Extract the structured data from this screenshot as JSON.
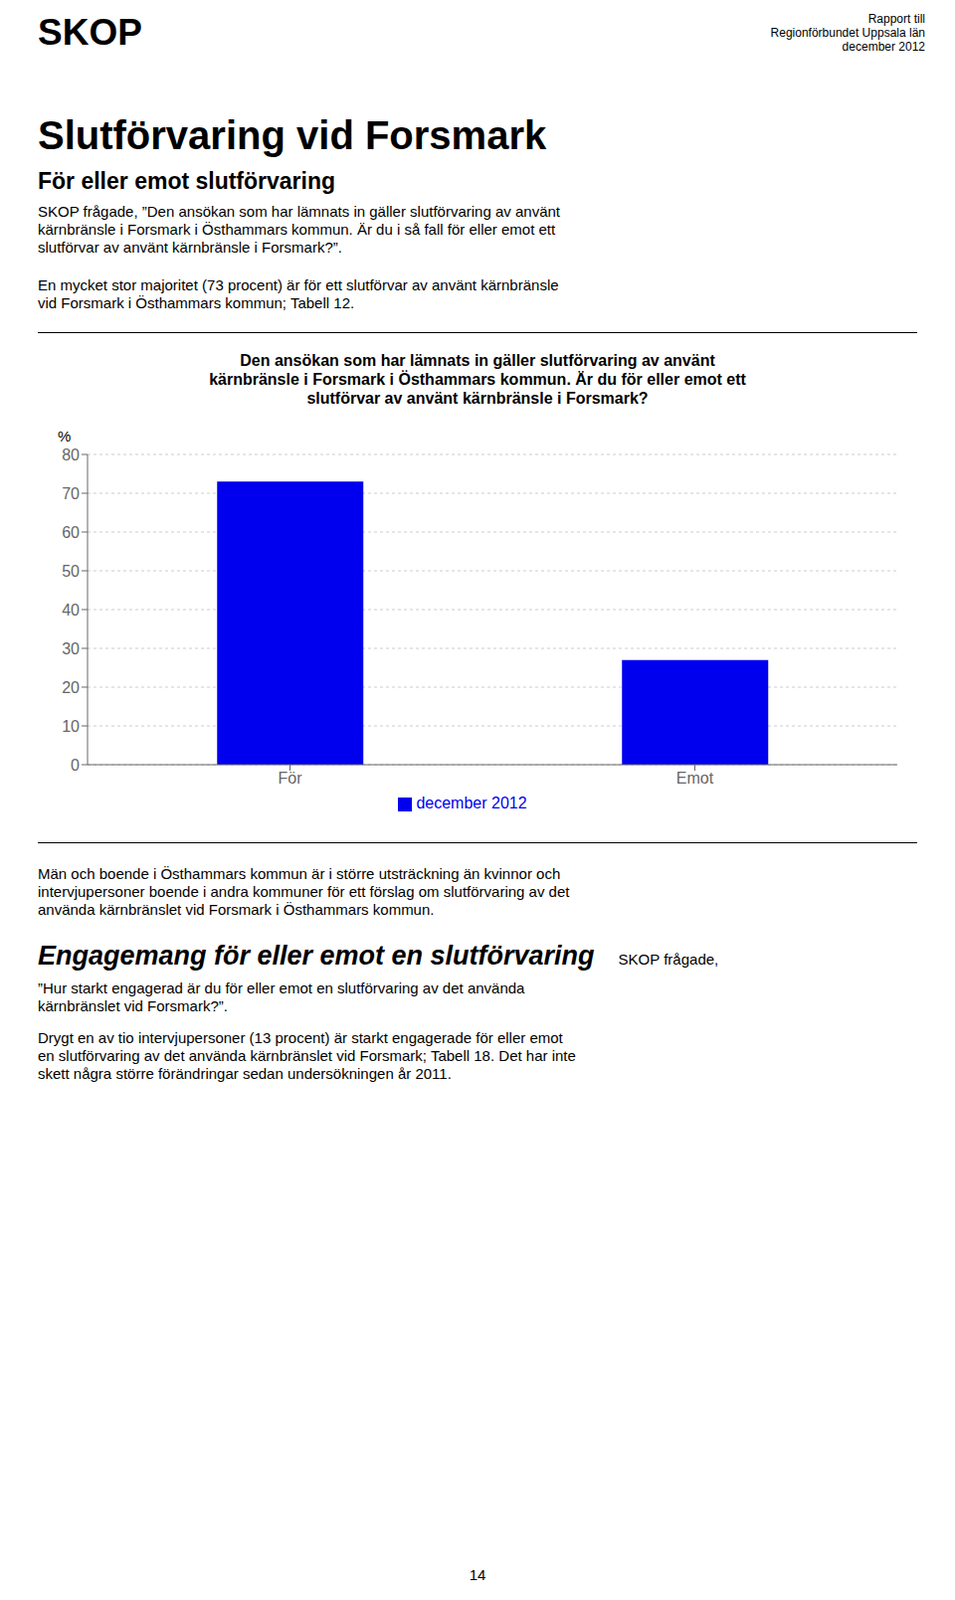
{
  "chart_data": {
    "type": "bar",
    "title": [
      "Den ansökan som har lämnats in gäller slutförvaring av använt",
      "kärnbränsle i Forsmark i Östhammars kommun. Är du för eller emot ett",
      "slutförvar av använt kärnbränsle i Forsmark?"
    ],
    "categories": [
      "För",
      "Emot"
    ],
    "series": [
      {
        "name": "december 2012",
        "color": "#0000ee",
        "values": [
          73,
          27
        ]
      }
    ],
    "ylabel": "%",
    "ylim": [
      0,
      80
    ],
    "yticks": [
      0,
      10,
      20,
      30,
      40,
      50,
      60,
      70,
      80
    ],
    "grid": true,
    "legend": "bottom",
    "annotations": [
      [
        "SKOP"
      ],
      [
        "Rapport till",
        "Regionförbundet Uppsala län",
        "december 2012"
      ],
      [
        "Slutförvaring vid Forsmark"
      ],
      [
        "För eller emot slutförvaring"
      ],
      [
        "SKOP frågade, ”Den ansökan som har lämnats in gäller slutförvaring av använt",
        "kärnbränsle i Forsmark i Östhammars kommun. Är du i så fall för eller emot ett",
        "slutförvar av använt kärnbränsle i Forsmark?”."
      ],
      [
        "En mycket stor majoritet (73 procent) är för ett slutförvar av använt kärnbränsle",
        "vid Forsmark i Östhammars kommun; Tabell 12."
      ],
      [
        "Män och boende i Östhammars kommun är i större utsträckning än kvinnor och",
        "intervjupersoner boende i andra kommuner för ett förslag om slutförvaring av det",
        "använda kärnbränslet vid Forsmark i Östhammars kommun."
      ],
      [
        "Engagemang för eller emot en slutförvaring",
        "SKOP frågade,"
      ],
      [
        "”Hur starkt engagerad är du för eller emot en slutförvaring av det använda",
        "kärnbränslet vid Forsmark?”."
      ],
      [
        "Drygt en av tio intervjupersoner (13 procent) är starkt engagerade för eller emot",
        "en slutförvaring av det använda kärnbränslet vid Forsmark; Tabell 18. Det har inte",
        "skett några större förändringar sedan undersökningen år 2011."
      ],
      [
        "14"
      ]
    ]
  }
}
